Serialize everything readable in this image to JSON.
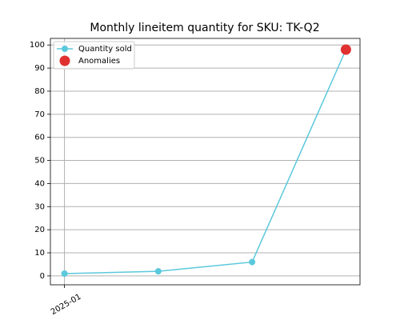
{
  "chart_data": {
    "type": "line",
    "title": "Monthly lineitem quantity for SKU: TK-Q2",
    "categories": [
      "2025-01",
      null,
      null,
      null
    ],
    "series": [
      {
        "name": "Quantity sold",
        "color": "#5bc8dc",
        "mode": "lines+markers",
        "values": [
          1,
          2,
          6,
          98
        ]
      },
      {
        "name": "Anomalies",
        "color": "#e03030",
        "mode": "markers",
        "values": [
          null,
          null,
          null,
          98
        ]
      }
    ],
    "ylim": [
      -3.85,
      102.85
    ],
    "yticks": [
      0,
      10,
      20,
      30,
      40,
      50,
      60,
      70,
      80,
      90,
      100
    ],
    "grid": true,
    "legend": "upper left"
  }
}
